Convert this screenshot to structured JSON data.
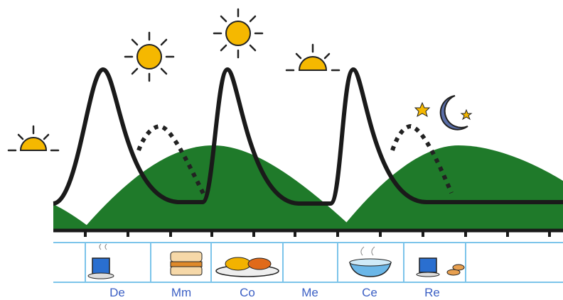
{
  "meals": [
    "De",
    "Mm",
    "Co",
    "Me",
    "Ce",
    "Re"
  ]
}
